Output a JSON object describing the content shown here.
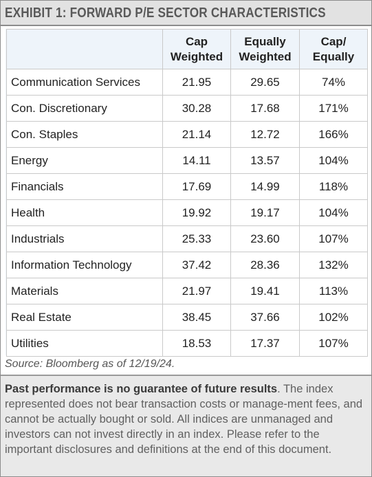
{
  "title": "EXHIBIT 1: FORWARD P/E SECTOR CHARACTERISTICS",
  "table": {
    "headers": [
      [
        "Cap",
        "Weighted"
      ],
      [
        "Equally",
        "Weighted"
      ],
      [
        "Cap/",
        "Equally"
      ]
    ],
    "rows": [
      {
        "sector": "Communication Services",
        "cap": "21.95",
        "equal": "29.65",
        "ratio": "74%"
      },
      {
        "sector": "Con. Discretionary",
        "cap": "30.28",
        "equal": "17.68",
        "ratio": "171%"
      },
      {
        "sector": "Con. Staples",
        "cap": "21.14",
        "equal": "12.72",
        "ratio": "166%"
      },
      {
        "sector": "Energy",
        "cap": "14.11",
        "equal": "13.57",
        "ratio": "104%"
      },
      {
        "sector": "Financials",
        "cap": "17.69",
        "equal": "14.99",
        "ratio": "118%"
      },
      {
        "sector": "Health",
        "cap": "19.92",
        "equal": "19.17",
        "ratio": "104%"
      },
      {
        "sector": "Industrials",
        "cap": "25.33",
        "equal": "23.60",
        "ratio": "107%"
      },
      {
        "sector": "Information Technology",
        "cap": "37.42",
        "equal": "28.36",
        "ratio": "132%"
      },
      {
        "sector": "Materials",
        "cap": "21.97",
        "equal": "19.41",
        "ratio": "113%"
      },
      {
        "sector": "Real Estate",
        "cap": "38.45",
        "equal": "37.66",
        "ratio": "102%"
      },
      {
        "sector": "Utilities",
        "cap": "18.53",
        "equal": "17.37",
        "ratio": "107%"
      }
    ]
  },
  "source": "Source: Bloomberg as of 12/19/24.",
  "disclaimer": {
    "lead": "Past performance is no guarantee of future results",
    "body": ". The index represented does not bear transaction costs or manage-ment fees, and cannot be actually bought or sold. All indices are unmanaged and investors can not invest directly in an index. Please refer to the important disclosures and definitions at the end of this document."
  },
  "colors": {
    "title_bg": "#e2e2e2",
    "title_text": "#595959",
    "header_bg": "#eef4fa",
    "footer_bg": "#e9e9e9",
    "grid": "#c9c9c9"
  }
}
